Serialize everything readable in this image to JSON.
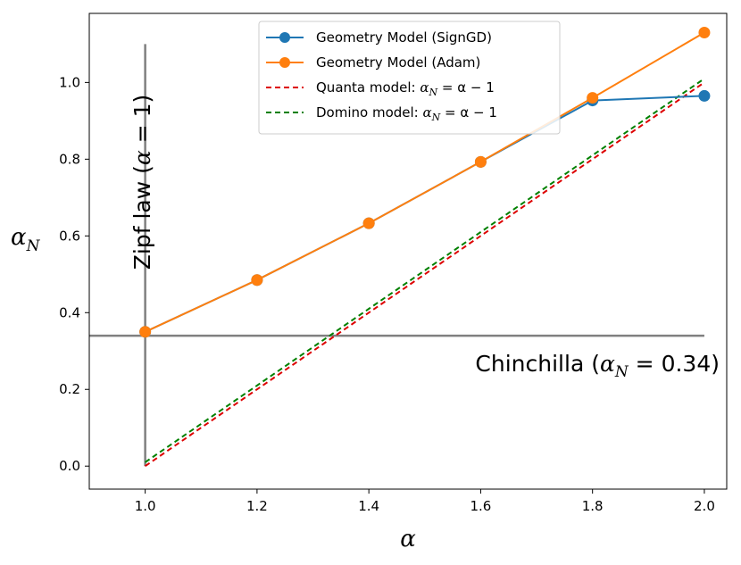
{
  "chart_data": {
    "type": "line",
    "xlabel": "α",
    "ylabel": "α",
    "ylabel_sub": "N",
    "xlim": [
      0.9,
      2.04
    ],
    "ylim": [
      -0.06,
      1.18
    ],
    "x_ticks": [
      1.0,
      1.2,
      1.4,
      1.6,
      1.8,
      2.0
    ],
    "x_tick_labels": [
      "1.0",
      "1.2",
      "1.4",
      "1.6",
      "1.8",
      "2.0"
    ],
    "y_ticks": [
      0.0,
      0.2,
      0.4,
      0.6,
      0.8,
      1.0
    ],
    "y_tick_labels": [
      "0.0",
      "0.2",
      "0.4",
      "0.6",
      "0.8",
      "1.0"
    ],
    "series": [
      {
        "name": "Geometry Model (SignGD)",
        "color": "#1f77b4",
        "style": "solid-marker",
        "x": [
          1.0,
          1.2,
          1.4,
          1.6,
          1.8,
          2.0
        ],
        "y": [
          0.35,
          0.485,
          0.633,
          0.793,
          0.953,
          0.965
        ]
      },
      {
        "name": "Geometry Model (Adam)",
        "color": "#ff7f0e",
        "style": "solid-marker",
        "x": [
          1.0,
          1.2,
          1.4,
          1.6,
          1.8,
          2.0
        ],
        "y": [
          0.35,
          0.485,
          0.633,
          0.793,
          0.96,
          1.13
        ]
      },
      {
        "name": "Quanta model: α_N = α − 1",
        "color": "#dd0000",
        "style": "dashed",
        "x": [
          1.0,
          2.0
        ],
        "y": [
          0.0,
          1.0
        ]
      },
      {
        "name": "Domino model: α_N = α − 1",
        "color": "#008000",
        "style": "dashed",
        "x": [
          1.0,
          2.0
        ],
        "y": [
          0.01,
          1.01
        ]
      }
    ],
    "legend": {
      "placement": "top-center",
      "entries": [
        {
          "pre": "Geometry Model (SignGD)",
          "math": false
        },
        {
          "pre": "Geometry Model (Adam)",
          "math": false
        },
        {
          "pre": "Quanta model: ",
          "math": true
        },
        {
          "pre": "Domino model: ",
          "math": true
        }
      ],
      "math_lhs": "α",
      "math_sub": "N",
      "math_rhs": " = α − 1"
    },
    "reference_lines": [
      {
        "orientation": "vertical",
        "x": 1.0,
        "y_range": [
          0.0,
          1.1
        ],
        "color": "#808080"
      },
      {
        "orientation": "horizontal",
        "y": 0.34,
        "x_range": [
          0.9,
          2.0
        ],
        "color": "#808080"
      }
    ],
    "annotations": {
      "zipf": {
        "pre": "Zipf law (",
        "sym": "α",
        "post": " = 1)"
      },
      "chinchilla": {
        "pre": "Chinchilla (",
        "sym": "α",
        "sub": "N",
        "post": " = 0.34)"
      }
    }
  }
}
